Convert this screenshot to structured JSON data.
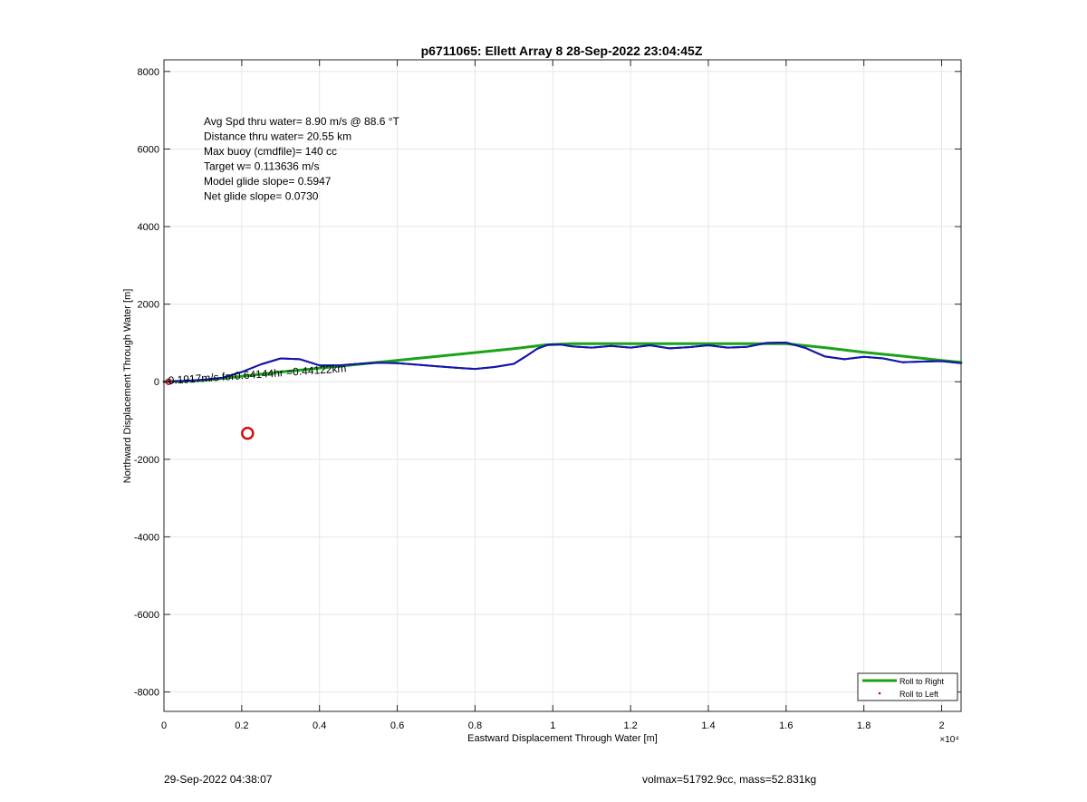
{
  "chart_data": {
    "type": "line",
    "title": "p6711065: Ellett Array 8 28-Sep-2022 23:04:45Z",
    "xlabel": "Eastward Displacement Through Water [m]",
    "ylabel": "Northward Displacement Through Water [m]",
    "xlim": [
      0,
      20500
    ],
    "ylim": [
      -8500,
      8300
    ],
    "x_tick_values": [
      0,
      2000,
      4000,
      6000,
      8000,
      10000,
      12000,
      14000,
      16000,
      18000,
      20000
    ],
    "x_tick_labels": [
      "0",
      "0.2",
      "0.4",
      "0.6",
      "0.8",
      "1",
      "1.2",
      "1.4",
      "1.6",
      "1.8",
      "2"
    ],
    "x_exponent_label": "×10⁴",
    "y_tick_values": [
      8000,
      6000,
      4000,
      2000,
      0,
      -2000,
      -4000,
      -6000,
      -8000
    ],
    "y_tick_labels": [
      "8000",
      "6000",
      "4000",
      "2000",
      "0",
      "-2000",
      "-4000",
      "-6000",
      "-8000"
    ],
    "grid": true,
    "legend_position": "bottom-right",
    "series": [
      {
        "name": "Roll to Right",
        "color": "#1aa31a",
        "x": [
          0,
          1000,
          3000,
          5000,
          7000,
          9000,
          9800,
          10500,
          12000,
          14000,
          16000,
          17000,
          18000,
          19000,
          20000,
          20500
        ],
        "y": [
          0,
          30,
          250,
          450,
          650,
          850,
          950,
          980,
          980,
          980,
          980,
          880,
          760,
          660,
          550,
          500
        ]
      },
      {
        "name": "Roll to Left",
        "color": "#e00000",
        "x": [],
        "y": []
      },
      {
        "color": "#111111",
        "x": [
          0,
          500,
          1000,
          1500,
          2000,
          2500,
          3000,
          3500,
          4000,
          4500,
          5000,
          5500,
          6000,
          6500,
          7000,
          7500,
          8000,
          8500,
          9000,
          9300,
          9600,
          9900,
          10200,
          10500,
          11000,
          11500,
          12000,
          12500,
          13000,
          13500,
          14000,
          14500,
          15000,
          15500,
          16000,
          16500,
          17000,
          17500,
          18000,
          18500,
          19000,
          19500,
          20000,
          20500
        ],
        "y": [
          0,
          20,
          50,
          100,
          250,
          450,
          600,
          580,
          420,
          420,
          460,
          490,
          480,
          440,
          400,
          360,
          330,
          380,
          460,
          650,
          850,
          960,
          960,
          910,
          880,
          920,
          880,
          940,
          860,
          890,
          940,
          880,
          900,
          1000,
          1010,
          870,
          650,
          580,
          640,
          600,
          500,
          520,
          530,
          480
        ]
      },
      {
        "color": "#1414b4",
        "x": [
          0,
          500,
          1000,
          1500,
          2000,
          2500,
          3000,
          3500,
          4000,
          4500,
          5000,
          5500,
          6000,
          6500,
          7000,
          7500,
          8000,
          8500,
          9000,
          9300,
          9600,
          9900,
          10200,
          10500,
          11000,
          11500,
          12000,
          12500,
          13000,
          13500,
          14000,
          14500,
          15000,
          15500,
          16000,
          16500,
          17000,
          17500,
          18000,
          18500,
          19000,
          19500,
          20000,
          20500
        ],
        "y": [
          0,
          20,
          50,
          100,
          250,
          450,
          600,
          580,
          420,
          420,
          460,
          490,
          480,
          440,
          400,
          360,
          330,
          380,
          460,
          650,
          850,
          960,
          960,
          910,
          880,
          920,
          880,
          940,
          860,
          890,
          940,
          880,
          900,
          1000,
          1010,
          870,
          650,
          580,
          640,
          600,
          500,
          520,
          530,
          480
        ]
      }
    ],
    "markers": [
      {
        "x": 2150,
        "y": -1330,
        "color": "#d01010"
      },
      {
        "x": 120,
        "y": 0,
        "color": "#d01010"
      }
    ],
    "annotations": [
      "Avg Spd thru water=  8.90 m/s @  88.6 °T",
      "Distance thru water= 20.55 km",
      "Max buoy (cmdfile)= 140 cc",
      "Target w= 0.113636 m/s",
      "Model glide slope= 0.5947",
      "Net glide slope= 0.0730"
    ],
    "path_label": "0.1917m/s for0.64144hr =0.44122km"
  },
  "footer": {
    "left": "29-Sep-2022 04:38:07",
    "right": "volmax=51792.9cc, mass=52.831kg"
  }
}
